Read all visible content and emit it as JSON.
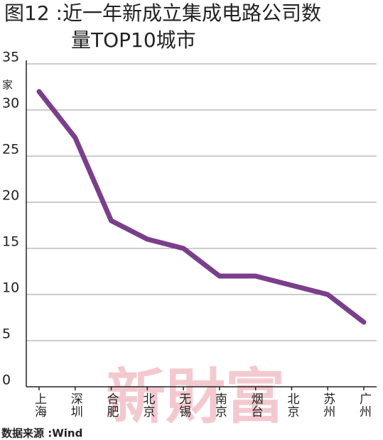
{
  "chart_data": {
    "type": "line",
    "title": [
      "图12 :近一年新成立集成电路公司数",
      "量TOP10城市"
    ],
    "y_unit": "家",
    "categories": [
      "上海",
      "深圳",
      "合肥",
      "北京",
      "无锡",
      "南京",
      "烟台",
      "北京",
      "苏州",
      "广州"
    ],
    "values": [
      32,
      27,
      18,
      16,
      15,
      12,
      12,
      11,
      10,
      7
    ],
    "color": "#7a3f8b",
    "ylim": [
      0,
      35
    ],
    "yticks": [
      0,
      5,
      10,
      15,
      20,
      25,
      30,
      35
    ],
    "grid": true,
    "source": "数据来源 :Wind",
    "watermark": "新財富"
  }
}
